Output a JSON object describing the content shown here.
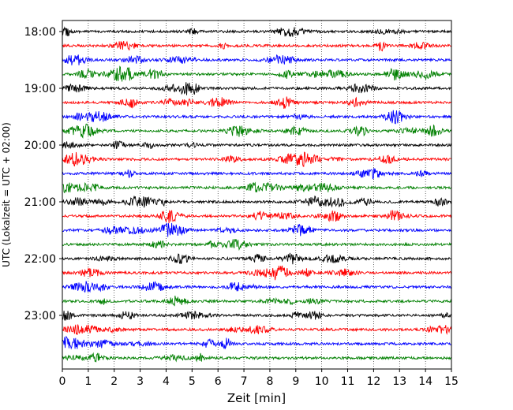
{
  "chart_data": {
    "type": "line",
    "title": "",
    "xlabel": "Zeit  [min]",
    "ylabel": "UTC (Lokalzeit = UTC + 02:00)",
    "xlim": [
      0,
      15
    ],
    "x_ticks": [
      "0",
      "1",
      "2",
      "3",
      "4",
      "5",
      "6",
      "7",
      "8",
      "9",
      "10",
      "11",
      "12",
      "13",
      "14",
      "15"
    ],
    "y_ticks": [
      "18:00",
      "19:00",
      "20:00",
      "21:00",
      "22:00",
      "23:00"
    ],
    "grid": "vertical dotted lines at each minute",
    "legend": "none",
    "trace_colors": [
      "#000000",
      "#ff0000",
      "#0000ff",
      "#008000"
    ],
    "trace_interval_min": 15,
    "start_time": "18:00",
    "end_time": "23:45",
    "series": [
      {
        "values": []
      },
      {
        "values": []
      },
      {
        "values": []
      },
      {
        "values": []
      },
      {
        "values": []
      },
      {
        "values": []
      },
      {
        "values": []
      },
      {
        "values": []
      },
      {
        "values": []
      },
      {
        "values": []
      },
      {
        "values": []
      },
      {
        "values": []
      },
      {
        "values": []
      },
      {
        "values": []
      },
      {
        "values": []
      },
      {
        "values": []
      },
      {
        "values": []
      },
      {
        "values": []
      },
      {
        "values": []
      },
      {
        "values": []
      },
      {
        "values": []
      },
      {
        "values": []
      },
      {
        "values": []
      },
      {
        "values": []
      }
    ]
  }
}
